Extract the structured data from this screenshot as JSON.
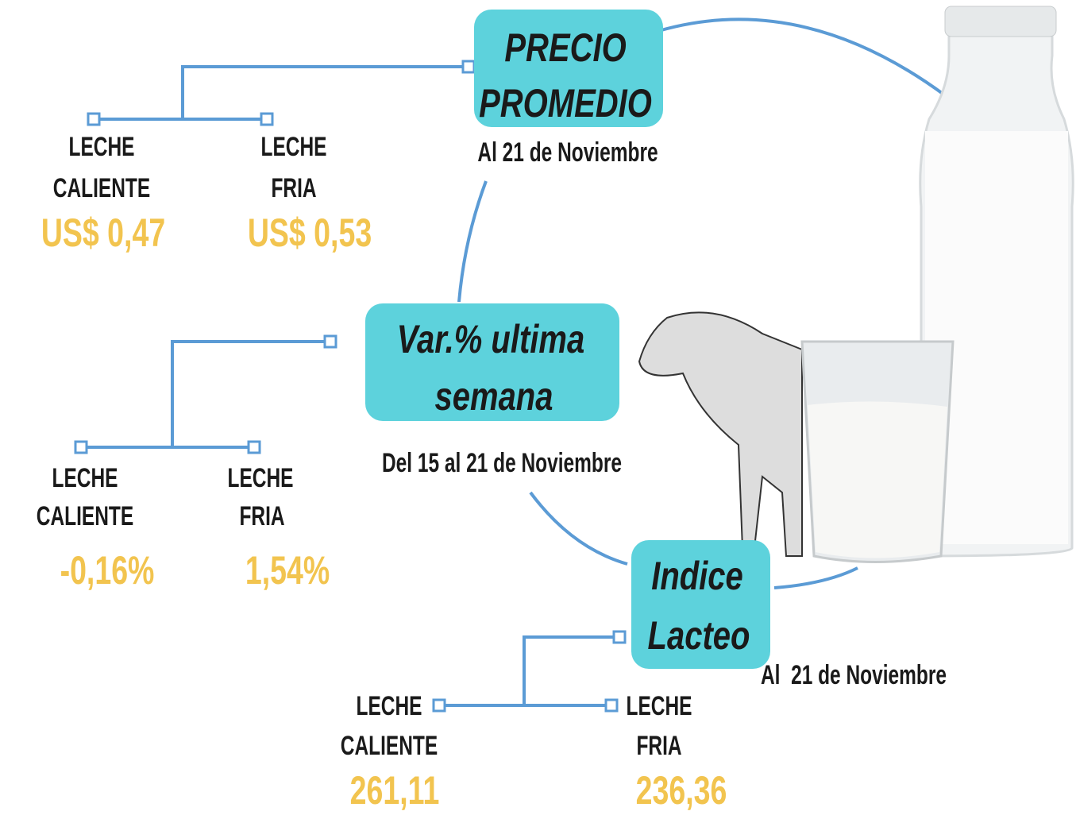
{
  "sections": [
    {
      "title": [
        "PRECIO",
        "PROMEDIO"
      ],
      "subtitle": "Al 21 de Noviembre",
      "items": [
        {
          "label": [
            "LECHE",
            "CALIENTE"
          ],
          "value": "US$ 0,47"
        },
        {
          "label": [
            "LECHE",
            "FRIA"
          ],
          "value": "US$ 0,53"
        }
      ]
    },
    {
      "title": [
        "Var.% ultima",
        "semana"
      ],
      "subtitle": "Del 15 al 21 de Noviembre",
      "items": [
        {
          "label": [
            "LECHE",
            "CALIENTE"
          ],
          "value": "-0,16%"
        },
        {
          "label": [
            "LECHE",
            "FRIA"
          ],
          "value": "1,54%"
        }
      ]
    },
    {
      "title": [
        "Indice",
        "Lacteo"
      ],
      "subtitle": "Al  21 de Noviembre",
      "items": [
        {
          "label": [
            "LECHE",
            "CALIENTE"
          ],
          "value": "261,11"
        },
        {
          "label": [
            "LECHE",
            "FRIA"
          ],
          "value": "236,36"
        }
      ]
    }
  ]
}
